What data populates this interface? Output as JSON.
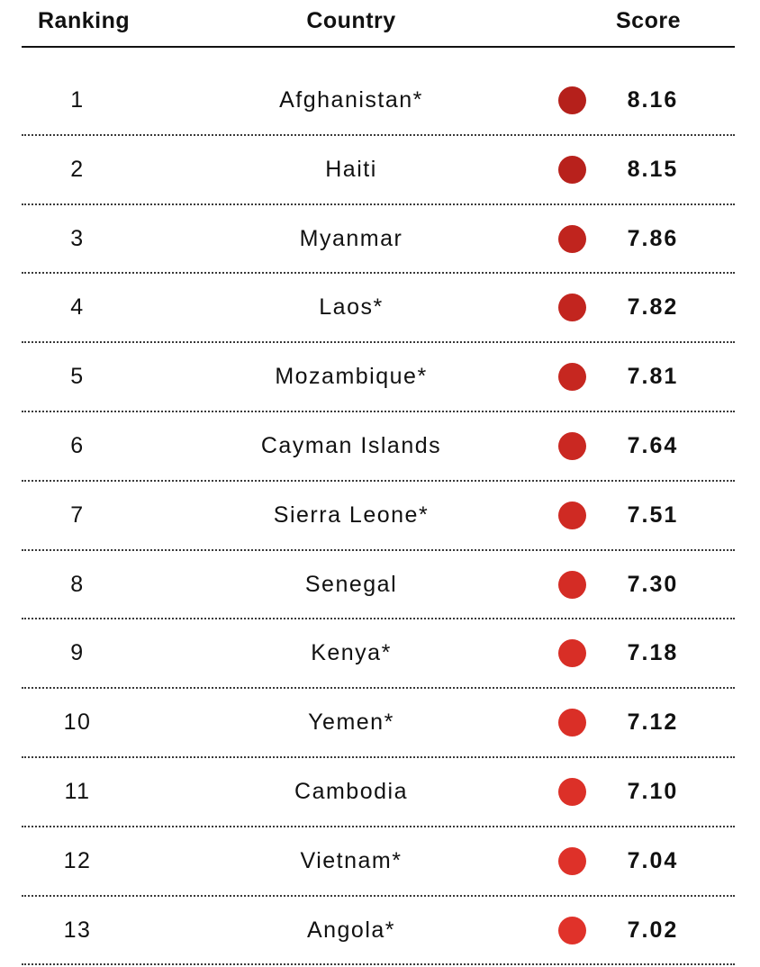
{
  "header": {
    "ranking_label": "Ranking",
    "country_label": "Country",
    "score_label": "Score"
  },
  "chart_data": {
    "type": "table",
    "columns": [
      "Ranking",
      "Country",
      "Score"
    ],
    "rows": [
      {
        "rank": "1",
        "country": "Afghanistan*",
        "score": "8.16",
        "color": "#b5201b"
      },
      {
        "rank": "2",
        "country": "Haiti",
        "score": "8.15",
        "color": "#b8211c"
      },
      {
        "rank": "3",
        "country": "Myanmar",
        "score": "7.86",
        "color": "#c0241e"
      },
      {
        "rank": "4",
        "country": "Laos*",
        "score": "7.82",
        "color": "#c2251f"
      },
      {
        "rank": "5",
        "country": "Mozambique*",
        "score": "7.81",
        "color": "#c62720"
      },
      {
        "rank": "6",
        "country": "Cayman Islands",
        "score": "7.64",
        "color": "#ca2822"
      },
      {
        "rank": "7",
        "country": "Sierra Leone*",
        "score": "7.51",
        "color": "#cf2a23"
      },
      {
        "rank": "8",
        "country": "Senegal",
        "score": "7.30",
        "color": "#d42c25"
      },
      {
        "rank": "9",
        "country": "Kenya*",
        "score": "7.18",
        "color": "#d82e26"
      },
      {
        "rank": "10",
        "country": "Yemen*",
        "score": "7.12",
        "color": "#da2f27"
      },
      {
        "rank": "11",
        "country": "Cambodia",
        "score": "7.10",
        "color": "#dc3028"
      },
      {
        "rank": "12",
        "country": "Vietnam*",
        "score": "7.04",
        "color": "#de3129"
      },
      {
        "rank": "13",
        "country": "Angola*",
        "score": "7.02",
        "color": "#e0322a"
      }
    ]
  }
}
